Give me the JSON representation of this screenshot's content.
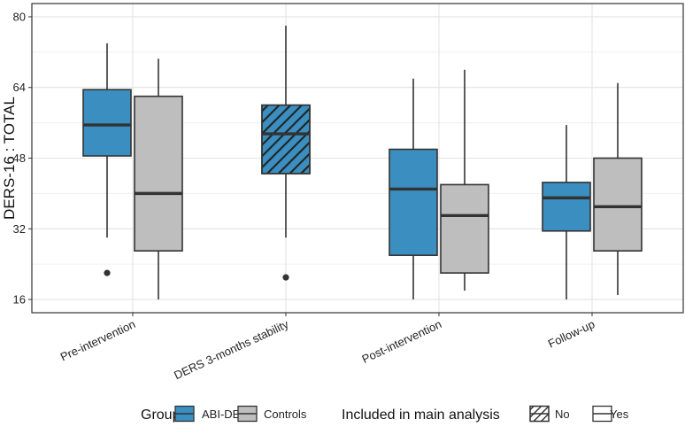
{
  "chart_data": {
    "type": "boxplot",
    "ylabel": "DERS-16 : TOTAL",
    "xlabel": "",
    "ylim": [
      13,
      83
    ],
    "yticks": [
      16,
      32,
      48,
      64,
      80
    ],
    "grid": true,
    "categories": [
      "Pre-intervention",
      "DERS 3-months stability",
      "Post-intervention",
      "Follow-up"
    ],
    "boxes": [
      {
        "category": "Pre-intervention",
        "group": "ABI-DBT",
        "included": "Yes",
        "whisker_low": 30,
        "q1": 48.5,
        "median": 55.5,
        "q3": 63.5,
        "whisker_high": 74,
        "outliers": [
          22
        ]
      },
      {
        "category": "Pre-intervention",
        "group": "Controls",
        "included": "Yes",
        "whisker_low": 16,
        "q1": 27,
        "median": 40,
        "q3": 62,
        "whisker_high": 70.5,
        "outliers": []
      },
      {
        "category": "DERS 3-months stability",
        "group": "ABI-DBT",
        "included": "No",
        "whisker_low": 30,
        "q1": 44.5,
        "median": 53.5,
        "q3": 60,
        "whisker_high": 78,
        "outliers": [
          21
        ]
      },
      {
        "category": "Post-intervention",
        "group": "ABI-DBT",
        "included": "Yes",
        "whisker_low": 16,
        "q1": 26,
        "median": 41,
        "q3": 50,
        "whisker_high": 66,
        "outliers": []
      },
      {
        "category": "Post-intervention",
        "group": "Controls",
        "included": "Yes",
        "whisker_low": 18,
        "q1": 22,
        "median": 35,
        "q3": 42,
        "whisker_high": 68,
        "outliers": []
      },
      {
        "category": "Follow-up",
        "group": "ABI-DBT",
        "included": "Yes",
        "whisker_low": 16,
        "q1": 31.5,
        "median": 39,
        "q3": 42.5,
        "whisker_high": 55.5,
        "outliers": []
      },
      {
        "category": "Follow-up",
        "group": "Controls",
        "included": "Yes",
        "whisker_low": 17,
        "q1": 27,
        "median": 37,
        "q3": 48,
        "whisker_high": 65,
        "outliers": []
      }
    ],
    "legend": {
      "placement": "bottom",
      "group_title": "Group",
      "groups": [
        {
          "name": "ABI-DBT",
          "color": "#3a8fc0"
        },
        {
          "name": "Controls",
          "color": "#bebebe"
        }
      ],
      "included_title": "Included in main analysis",
      "included": [
        {
          "name": "No",
          "pattern": "stripe"
        },
        {
          "name": "Yes",
          "pattern": "none"
        }
      ]
    }
  }
}
